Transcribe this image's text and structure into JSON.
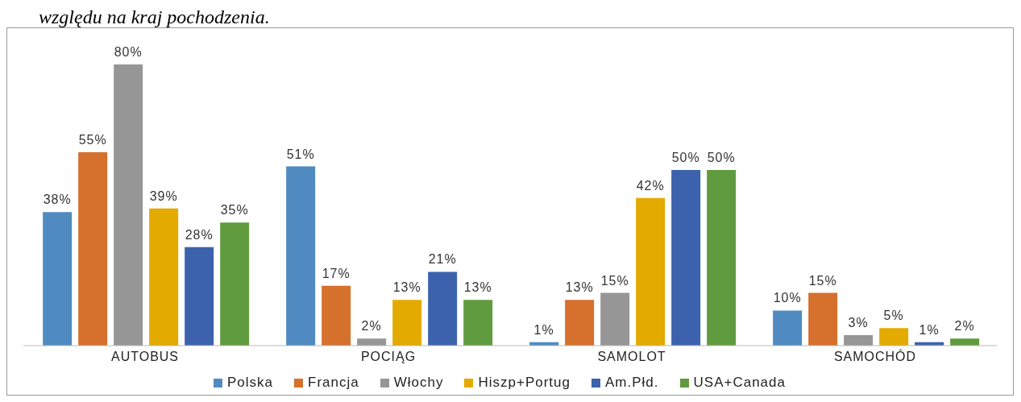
{
  "chart_data": {
    "type": "bar",
    "annotations": [
      "względu na kraj pochodzenia."
    ],
    "categories": [
      "AUTOBUS",
      "POCIĄG",
      "SAMOLOT",
      "SAMOCHÓD"
    ],
    "legend": "bottom",
    "series": [
      {
        "name": "Polska",
        "color": "#4f8bc0",
        "values": [
          38,
          51,
          1,
          10
        ],
        "value_labels": [
          "38%",
          "51%",
          "1%",
          "10%"
        ]
      },
      {
        "name": "Francja",
        "color": "#d5702d",
        "values": [
          55,
          17,
          13,
          15
        ],
        "value_labels": [
          "55%",
          "17%",
          "13%",
          "15%"
        ]
      },
      {
        "name": "Włochy",
        "color": "#969696",
        "values": [
          80,
          2,
          15,
          3
        ],
        "value_labels": [
          "80%",
          "2%",
          "15%",
          "3%"
        ]
      },
      {
        "name": "Hiszp+Portug",
        "color": "#e3aa00",
        "values": [
          39,
          13,
          42,
          5
        ],
        "value_labels": [
          "39%",
          "13%",
          "42%",
          "5%"
        ]
      },
      {
        "name": "Am.Płd.",
        "color": "#3c62ad",
        "values": [
          28,
          21,
          50,
          1
        ],
        "value_labels": [
          "28%",
          "21%",
          "50%",
          "1%"
        ]
      },
      {
        "name": "USA+Canada",
        "color": "#619b3f",
        "values": [
          35,
          13,
          50,
          2
        ],
        "value_labels": [
          "35%",
          "13%",
          "50%",
          "2%"
        ]
      }
    ]
  }
}
